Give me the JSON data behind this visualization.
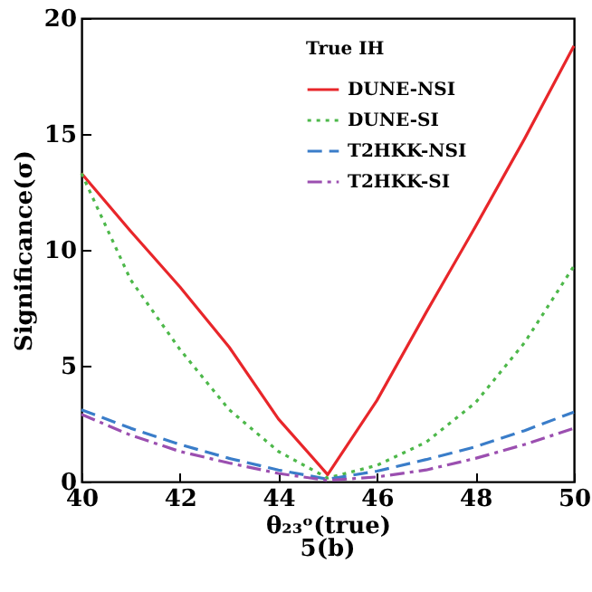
{
  "chart_data": {
    "type": "line",
    "xlabel": "θ₂₃ᵒ(true)",
    "ylabel": "Significance(σ)",
    "legend_title": "True IH",
    "annotations": [
      "5(b)"
    ],
    "x": [
      40,
      41,
      42,
      43,
      44,
      45,
      46,
      47,
      48,
      49,
      50
    ],
    "series": [
      {
        "name": "DUNE-NSI",
        "color": "#e8262a",
        "line_style": "solid",
        "values": [
          13.3,
          10.8,
          8.4,
          5.8,
          2.7,
          0.3,
          3.5,
          7.3,
          11,
          14.8,
          18.8
        ]
      },
      {
        "name": "DUNE-SI",
        "color": "#4db84a",
        "line_style": "dotted",
        "values": [
          13.3,
          8.7,
          5.7,
          3.1,
          1.3,
          0.15,
          0.7,
          1.7,
          3.4,
          6,
          9.3
        ]
      },
      {
        "name": "T2HKK-NSI",
        "color": "#3a7dc9",
        "line_style": "dashed",
        "values": [
          3.1,
          2.3,
          1.6,
          1,
          0.5,
          0.1,
          0.45,
          0.95,
          1.5,
          2.2,
          3
        ]
      },
      {
        "name": "T2HKK-SI",
        "color": "#9b4fb0",
        "line_style": "dashdot",
        "values": [
          2.9,
          2,
          1.3,
          0.8,
          0.35,
          0.05,
          0.2,
          0.5,
          1,
          1.6,
          2.3
        ]
      }
    ],
    "xlim": [
      40,
      50
    ],
    "xticks": [
      40,
      42,
      44,
      46,
      48,
      50
    ],
    "ylim": [
      0,
      20
    ],
    "yticks": [
      0,
      5,
      10,
      15,
      20
    ],
    "grid": false,
    "legend": "top right",
    "marker": "none"
  }
}
